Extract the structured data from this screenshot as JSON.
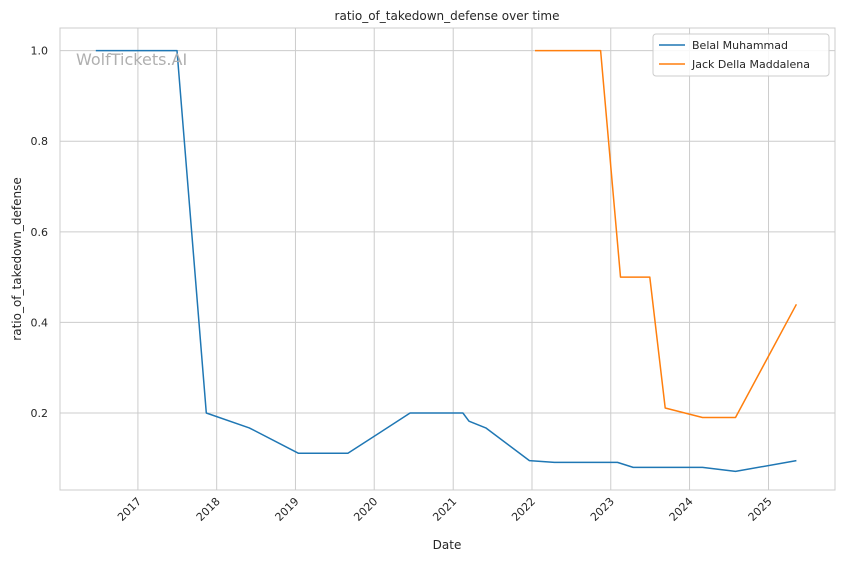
{
  "chart_data": {
    "type": "line",
    "title": "ratio_of_takedown_defense over time",
    "xlabel": "Date",
    "ylabel": "ratio_of_takedown_defense",
    "x_ticks": [
      "2017",
      "2018",
      "2019",
      "2020",
      "2021",
      "2022",
      "2023",
      "2024",
      "2025"
    ],
    "y_ticks": [
      "0.2",
      "0.4",
      "0.6",
      "0.8",
      "1.0"
    ],
    "xlim": [
      "2016-01-06",
      "2025-11-05"
    ],
    "ylim": [
      0.03,
      1.05
    ],
    "grid": true,
    "legend_position": "top-right",
    "watermark": "WolfTickets.AI",
    "series": [
      {
        "name": "Belal Muhammad",
        "color": "#1f77b4",
        "points": [
          [
            "2016-06-20",
            1.0
          ],
          [
            "2017-07-01",
            1.0
          ],
          [
            "2017-11-14",
            0.2
          ],
          [
            "2018-06-01",
            0.167
          ],
          [
            "2019-01-15",
            0.111
          ],
          [
            "2019-09-01",
            0.111
          ],
          [
            "2020-06-15",
            0.2
          ],
          [
            "2021-02-15",
            0.2
          ],
          [
            "2021-03-15",
            0.182
          ],
          [
            "2021-06-01",
            0.167
          ],
          [
            "2021-12-20",
            0.095
          ],
          [
            "2022-04-15",
            0.091
          ],
          [
            "2023-02-01",
            0.091
          ],
          [
            "2023-04-15",
            0.08
          ],
          [
            "2024-03-01",
            0.08
          ],
          [
            "2024-08-01",
            0.071
          ],
          [
            "2025-05-10",
            0.095
          ]
        ]
      },
      {
        "name": "Jack Della Maddalena",
        "color": "#ff7f0e",
        "points": [
          [
            "2022-01-15",
            1.0
          ],
          [
            "2022-11-15",
            1.0
          ],
          [
            "2023-02-15",
            0.5
          ],
          [
            "2023-07-01",
            0.5
          ],
          [
            "2023-09-10",
            0.211
          ],
          [
            "2024-03-01",
            0.19
          ],
          [
            "2024-08-01",
            0.19
          ],
          [
            "2025-05-10",
            0.44
          ]
        ]
      }
    ]
  }
}
